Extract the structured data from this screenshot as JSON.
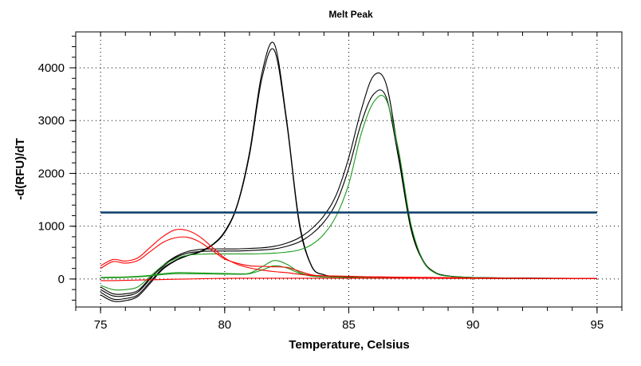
{
  "chart_data": {
    "type": "line",
    "title": "Melt Peak",
    "xlabel": "Temperature, Celsius",
    "ylabel": "-d(RFU)/dT",
    "xlim": [
      74,
      96
    ],
    "ylim": [
      -530,
      4680
    ],
    "xticks": [
      75,
      80,
      85,
      90,
      95
    ],
    "yticks": [
      0,
      1000,
      2000,
      3000,
      4000
    ],
    "x_minor_step": 1,
    "y_minor_step": 200,
    "grid": true,
    "legend": "none",
    "threshold": {
      "value": 1260,
      "color": "#0b3d6b"
    },
    "x": [
      75,
      75.5,
      76,
      76.5,
      77,
      77.5,
      78,
      78.5,
      79,
      79.5,
      80,
      80.5,
      81,
      81.5,
      82,
      82.5,
      83,
      83.5,
      84,
      84.5,
      85,
      85.5,
      86,
      86.5,
      87,
      87.5,
      88,
      88.5,
      89,
      89.5,
      90,
      90.5,
      91,
      91.5,
      92,
      92.5,
      93,
      93.5,
      94,
      94.5,
      95
    ],
    "series": [
      {
        "name": "black-1",
        "color": "#000000",
        "values": [
          -250,
          -380,
          -370,
          -300,
          -50,
          200,
          350,
          450,
          520,
          650,
          900,
          1400,
          2400,
          3900,
          4450,
          3000,
          1100,
          250,
          80,
          50,
          40,
          35,
          30,
          30,
          28,
          25,
          22,
          20,
          18,
          16,
          15,
          14,
          13,
          12,
          12,
          11,
          10,
          10,
          10,
          10,
          10
        ]
      },
      {
        "name": "black-2",
        "color": "#000000",
        "values": [
          -300,
          -420,
          -410,
          -330,
          -80,
          180,
          340,
          440,
          510,
          640,
          880,
          1380,
          2350,
          3800,
          4330,
          2950,
          1050,
          240,
          80,
          50,
          40,
          35,
          30,
          30,
          28,
          25,
          22,
          20,
          18,
          16,
          15,
          14,
          13,
          12,
          12,
          11,
          10,
          10,
          10,
          10,
          10
        ]
      },
      {
        "name": "black-3",
        "color": "#000000",
        "values": [
          -200,
          -320,
          -320,
          -250,
          0,
          250,
          420,
          520,
          560,
          570,
          570,
          570,
          580,
          590,
          620,
          680,
          780,
          950,
          1200,
          1600,
          2300,
          3200,
          3850,
          3700,
          2400,
          1000,
          350,
          120,
          60,
          40,
          30,
          25,
          22,
          20,
          18,
          16,
          15,
          14,
          13,
          12,
          12
        ]
      },
      {
        "name": "black-4",
        "color": "#000000",
        "values": [
          -150,
          -280,
          -280,
          -220,
          20,
          230,
          400,
          490,
          520,
          530,
          530,
          530,
          540,
          550,
          570,
          620,
          700,
          850,
          1080,
          1450,
          2100,
          2950,
          3500,
          3450,
          2300,
          950,
          330,
          110,
          55,
          38,
          28,
          24,
          21,
          19,
          17,
          15,
          14,
          13,
          12,
          12,
          11
        ]
      },
      {
        "name": "green-1",
        "color": "#1a9a1a",
        "values": [
          -120,
          -200,
          -200,
          -150,
          50,
          250,
          380,
          450,
          470,
          475,
          475,
          475,
          475,
          480,
          490,
          510,
          550,
          650,
          850,
          1200,
          1800,
          2750,
          3350,
          3400,
          2450,
          1050,
          340,
          110,
          55,
          38,
          28,
          24,
          21,
          19,
          17,
          15,
          14,
          13,
          12,
          12,
          11
        ]
      },
      {
        "name": "green-2",
        "color": "#1a9a1a",
        "values": [
          30,
          35,
          40,
          50,
          70,
          100,
          120,
          120,
          115,
          110,
          105,
          100,
          110,
          230,
          350,
          280,
          130,
          60,
          40,
          35,
          30,
          28,
          25,
          22,
          20,
          18,
          16,
          15,
          14,
          13,
          12,
          12,
          11,
          10,
          10,
          10,
          10,
          10,
          10,
          10,
          10
        ]
      },
      {
        "name": "green-3",
        "color": "#1a9a1a",
        "values": [
          20,
          25,
          30,
          40,
          60,
          85,
          100,
          100,
          98,
          95,
          92,
          90,
          100,
          170,
          250,
          210,
          110,
          55,
          38,
          33,
          28,
          26,
          24,
          21,
          19,
          17,
          15,
          14,
          13,
          12,
          12,
          11,
          10,
          10,
          10,
          10,
          10,
          10,
          10,
          10,
          10
        ]
      },
      {
        "name": "red-1",
        "color": "#ff0000",
        "values": [
          250,
          370,
          340,
          400,
          600,
          800,
          930,
          920,
          800,
          600,
          400,
          280,
          210,
          170,
          140,
          120,
          90,
          70,
          60,
          55,
          50,
          45,
          40,
          38,
          35,
          32,
          30,
          28,
          25,
          22,
          20,
          18,
          16,
          15,
          14,
          13,
          12,
          12,
          11,
          10,
          10
        ]
      },
      {
        "name": "red-2",
        "color": "#ff0000",
        "values": [
          200,
          330,
          300,
          350,
          520,
          690,
          780,
          790,
          700,
          540,
          380,
          300,
          250,
          240,
          230,
          220,
          150,
          80,
          60,
          55,
          50,
          45,
          40,
          38,
          35,
          32,
          30,
          28,
          25,
          22,
          20,
          18,
          16,
          15,
          14,
          13,
          12,
          12,
          11,
          10,
          10
        ]
      },
      {
        "name": "red-3",
        "color": "#ff0000",
        "values": [
          -30,
          -30,
          -25,
          -20,
          -15,
          -10,
          -5,
          0,
          5,
          10,
          12,
          14,
          15,
          15,
          15,
          15,
          15,
          15,
          15,
          15,
          15,
          15,
          15,
          15,
          15,
          14,
          14,
          13,
          13,
          12,
          12,
          12,
          11,
          11,
          10,
          10,
          10,
          10,
          10,
          10,
          10
        ]
      }
    ]
  }
}
